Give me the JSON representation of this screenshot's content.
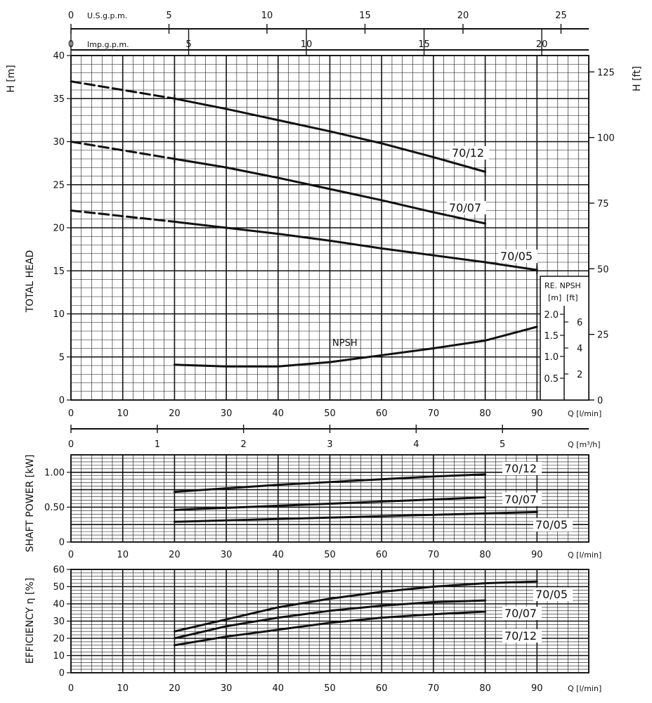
{
  "chart_data": [
    {
      "type": "line",
      "id": "head",
      "top_axis_1": {
        "label": "U.S.g.p.m.",
        "ticks": [
          0,
          5,
          10,
          15,
          20,
          25
        ]
      },
      "top_axis_2": {
        "label": "Imp.g.p.m.",
        "ticks": [
          0,
          5,
          10,
          15,
          20
        ]
      },
      "ylabel_left_top": "H  [m]",
      "ylabel_left_mid": "TOTAL HEAD",
      "ylabel_right": "H  [ft]",
      "xlabel": "Q  [l/min]",
      "xlim": [
        0,
        100
      ],
      "ylim": [
        0,
        40
      ],
      "x_ticks": [
        0,
        10,
        20,
        30,
        40,
        50,
        60,
        70,
        80,
        90
      ],
      "y_ticks": [
        0,
        5,
        10,
        15,
        20,
        25,
        30,
        35,
        40
      ],
      "y_ticks_right_ft": [
        0,
        25,
        50,
        75,
        100,
        125
      ],
      "series": [
        {
          "name": "70/12",
          "dashed": {
            "x": [
              0,
              20
            ],
            "y": [
              37,
              35
            ]
          },
          "x": [
            20,
            30,
            40,
            50,
            60,
            70,
            80
          ],
          "y": [
            35,
            33.8,
            32.5,
            31.2,
            29.8,
            28.2,
            26.5
          ]
        },
        {
          "name": "70/07",
          "dashed": {
            "x": [
              0,
              20
            ],
            "y": [
              30,
              28
            ]
          },
          "x": [
            20,
            30,
            40,
            50,
            60,
            70,
            80
          ],
          "y": [
            28,
            27,
            25.8,
            24.5,
            23.2,
            21.8,
            20.5
          ]
        },
        {
          "name": "70/05",
          "dashed": {
            "x": [
              0,
              20
            ],
            "y": [
              22,
              20.7
            ]
          },
          "x": [
            20,
            30,
            40,
            50,
            60,
            70,
            80,
            90
          ],
          "y": [
            20.7,
            20,
            19.3,
            18.5,
            17.6,
            16.8,
            16,
            15.1
          ]
        },
        {
          "name": "NPSH",
          "x": [
            20,
            30,
            40,
            50,
            60,
            70,
            80,
            90
          ],
          "y": [
            4.1,
            3.9,
            3.9,
            4.4,
            5.2,
            6,
            6.9,
            8.5
          ]
        }
      ],
      "npsh_box": {
        "title": "RE. NPSH",
        "units": [
          "[m]",
          "[ft]"
        ],
        "m_ticks": [
          "2.0",
          "1.5",
          "1.0",
          "0.5"
        ],
        "ft_ticks": [
          "6",
          "4",
          "2"
        ]
      }
    },
    {
      "type": "axis",
      "id": "m3h-axis",
      "label": "Q  [m³/h]",
      "ticks": [
        0,
        1,
        2,
        3,
        4,
        5
      ]
    },
    {
      "type": "line",
      "id": "shaft-power",
      "ylabel": "SHAFT POWER  [kW]",
      "xlabel": "Q  [l/min]",
      "xlim": [
        0,
        100
      ],
      "ylim": [
        0,
        1.25
      ],
      "x_ticks": [
        0,
        10,
        20,
        30,
        40,
        50,
        60,
        70,
        80,
        90
      ],
      "y_ticks": [
        "0",
        "0.50",
        "1.00"
      ],
      "series": [
        {
          "name": "70/12",
          "x": [
            20,
            30,
            40,
            50,
            60,
            70,
            80
          ],
          "y": [
            0.72,
            0.77,
            0.82,
            0.86,
            0.9,
            0.94,
            0.97
          ]
        },
        {
          "name": "70/07",
          "x": [
            20,
            30,
            40,
            50,
            60,
            70,
            80
          ],
          "y": [
            0.46,
            0.49,
            0.52,
            0.55,
            0.58,
            0.61,
            0.64
          ]
        },
        {
          "name": "70/05",
          "x": [
            20,
            30,
            40,
            50,
            60,
            70,
            80,
            90
          ],
          "y": [
            0.29,
            0.31,
            0.33,
            0.35,
            0.37,
            0.39,
            0.41,
            0.43
          ]
        }
      ]
    },
    {
      "type": "line",
      "id": "efficiency",
      "ylabel": "EFFICIENCY  η  [%]",
      "xlabel": "Q  [l/min]",
      "xlim": [
        0,
        100
      ],
      "ylim": [
        0,
        60
      ],
      "x_ticks": [
        0,
        10,
        20,
        30,
        40,
        50,
        60,
        70,
        80,
        90
      ],
      "y_ticks": [
        0,
        10,
        20,
        30,
        40,
        50,
        60
      ],
      "series": [
        {
          "name": "70/05",
          "x": [
            20,
            30,
            40,
            50,
            60,
            70,
            80,
            90
          ],
          "y": [
            24,
            31,
            38,
            43,
            47,
            50,
            52,
            53
          ]
        },
        {
          "name": "70/07",
          "x": [
            20,
            30,
            40,
            50,
            60,
            70,
            80
          ],
          "y": [
            20,
            27,
            32,
            36,
            39,
            41,
            42
          ]
        },
        {
          "name": "70/12",
          "x": [
            20,
            30,
            40,
            50,
            60,
            70,
            80
          ],
          "y": [
            16,
            21,
            25,
            29,
            32,
            34,
            35.5
          ]
        }
      ]
    }
  ]
}
